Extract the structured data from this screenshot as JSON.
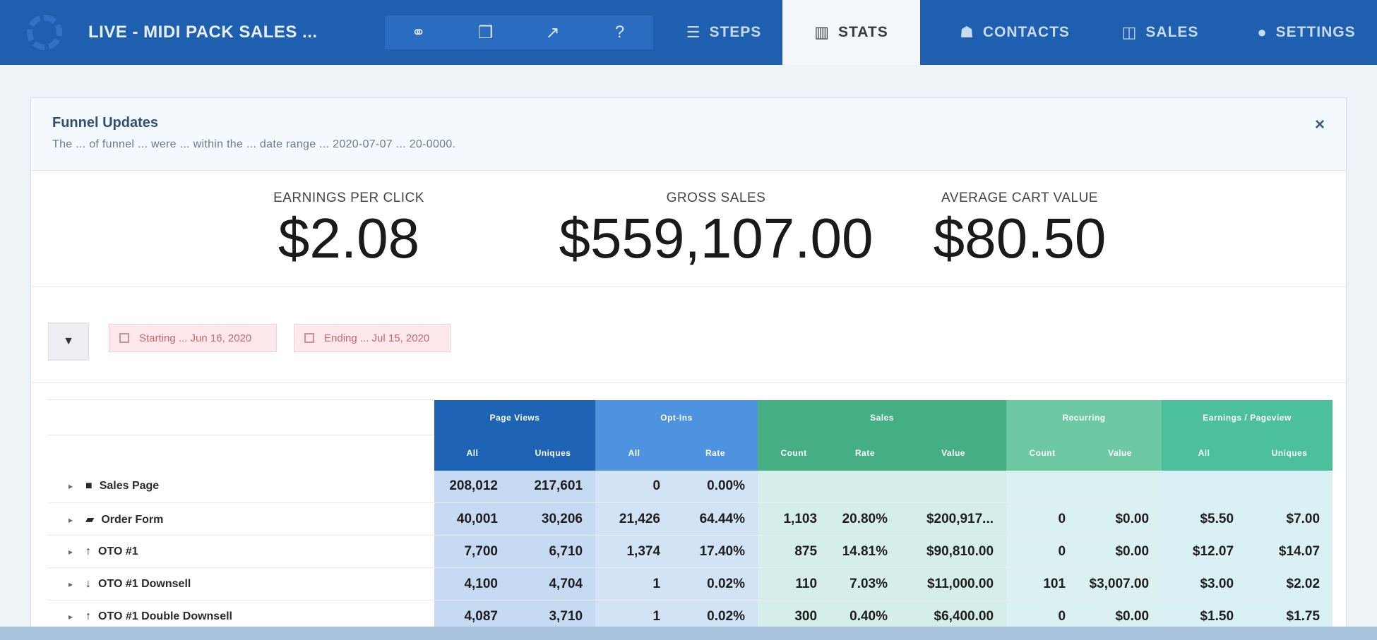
{
  "header": {
    "funnel_title": "LIVE - MIDI PACK SALES ...",
    "tabs": [
      {
        "label": "STEPS"
      },
      {
        "label": "STATS"
      },
      {
        "label": "CONTACTS"
      },
      {
        "label": "SALES"
      },
      {
        "label": "SETTINGS"
      }
    ]
  },
  "panel": {
    "title": "Funnel Updates",
    "subtitle": "The ... of funnel ... were ... within the ... date range ... 2020-07-07 ... 20-0000.",
    "close": "×"
  },
  "metrics": {
    "epc_label": "EARNINGS PER CLICK",
    "epc_value": "$2.08",
    "gross_label": "GROSS SALES",
    "gross_value": "$559,107.00",
    "acv_label": "AVERAGE CART VALUE",
    "acv_value": "$80.50"
  },
  "filters": {
    "chip1": "Starting ... Jun 16, 2020",
    "chip2": "Ending ... Jul 15, 2020"
  },
  "table": {
    "groups": [
      "Page Views",
      "Opt-Ins",
      "Sales",
      "Recurring",
      "Earnings / Pageview"
    ],
    "subheaders": [
      "All",
      "Uniques",
      "All",
      "Rate",
      "Count",
      "Rate",
      "Value",
      "Count",
      "Value",
      "All",
      "Uniques"
    ],
    "rows": [
      {
        "icon": "■",
        "name": "Sales Page",
        "cells": [
          "208,012",
          "217,601",
          "0",
          "0.00%",
          "",
          "",
          "",
          "",
          "",
          "",
          ""
        ]
      },
      {
        "icon": "▰",
        "name": "Order Form",
        "cells": [
          "40,001",
          "30,206",
          "21,426",
          "64.44%",
          "1,103",
          "20.80%",
          "$200,917...",
          "0",
          "$0.00",
          "$5.50",
          "$7.00"
        ]
      },
      {
        "icon": "↑",
        "name": "OTO #1",
        "cells": [
          "7,700",
          "6,710",
          "1,374",
          "17.40%",
          "875",
          "14.81%",
          "$90,810.00",
          "0",
          "$0.00",
          "$12.07",
          "$14.07"
        ]
      },
      {
        "icon": "↓",
        "name": "OTO #1 Downsell",
        "cells": [
          "4,100",
          "4,704",
          "1",
          "0.02%",
          "110",
          "7.03%",
          "$11,000.00",
          "101",
          "$3,007.00",
          "$3.00",
          "$2.02"
        ]
      },
      {
        "icon": "↑",
        "name": "OTO #1 Double Downsell",
        "cells": [
          "4,087",
          "3,710",
          "1",
          "0.02%",
          "300",
          "0.40%",
          "$6,400.00",
          "0",
          "$0.00",
          "$1.50",
          "$1.75"
        ]
      }
    ]
  }
}
